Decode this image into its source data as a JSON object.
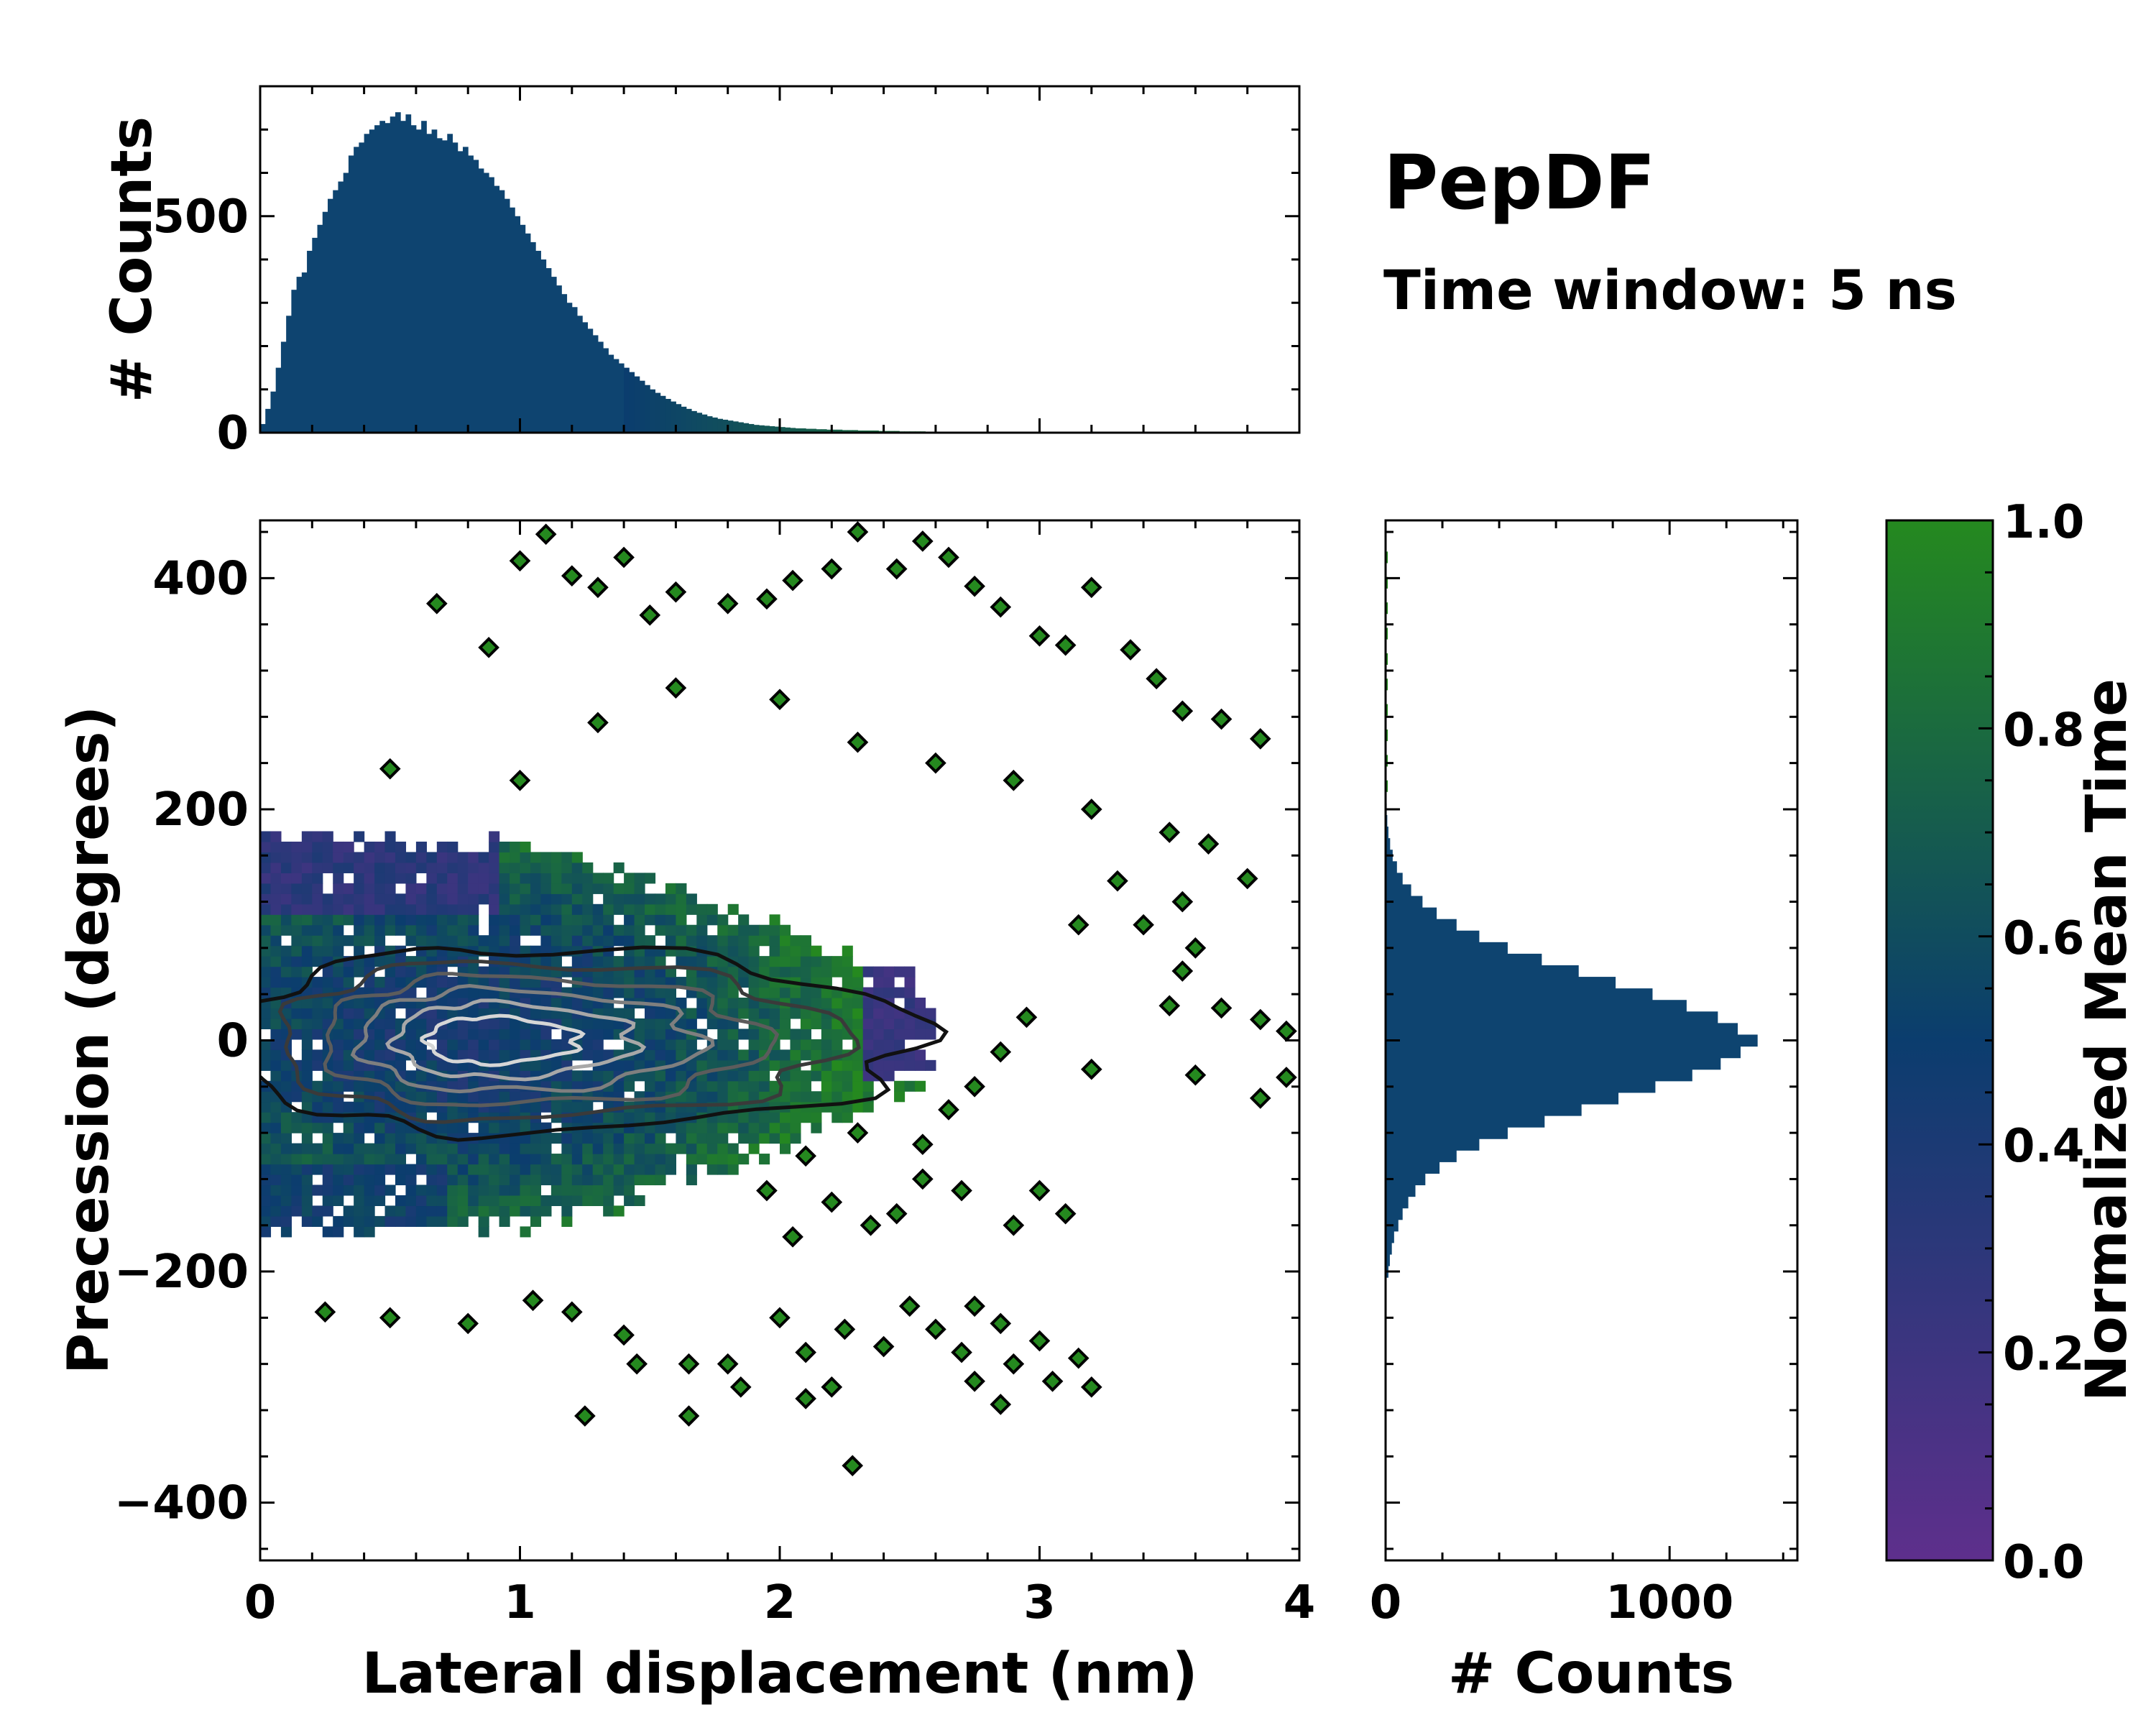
{
  "title": "PepDF",
  "subtitle": "Time window: 5 ns",
  "colors": {
    "hist_fill": "#0e4470",
    "cmap_low": "#5e2f8c",
    "cmap_mid": "#0b3d6e",
    "cmap_high": "#25891f"
  },
  "chart_data": [
    {
      "type": "bar",
      "name": "top-marginal-histogram",
      "ylabel": "# Counts",
      "xlim": [
        0,
        4
      ],
      "ylim": [
        0,
        800
      ],
      "y_ticks": [
        0,
        500
      ],
      "y_tick_labels": [
        "0",
        "500"
      ],
      "x_bin_edges_start": 0.0,
      "bin_width": 0.02,
      "values": [
        20,
        55,
        95,
        150,
        210,
        270,
        330,
        360,
        370,
        420,
        450,
        480,
        510,
        540,
        560,
        580,
        600,
        640,
        660,
        670,
        690,
        700,
        710,
        720,
        715,
        730,
        740,
        720,
        735,
        710,
        700,
        720,
        690,
        700,
        680,
        675,
        690,
        670,
        650,
        660,
        640,
        630,
        610,
        600,
        590,
        570,
        560,
        540,
        520,
        500,
        480,
        460,
        440,
        420,
        400,
        380,
        360,
        340,
        320,
        300,
        290,
        270,
        255,
        240,
        225,
        210,
        195,
        180,
        170,
        160,
        150,
        140,
        130,
        120,
        110,
        100,
        92,
        85,
        78,
        72,
        66,
        60,
        55,
        50,
        46,
        42,
        38,
        35,
        32,
        30,
        28,
        26,
        24,
        22,
        20,
        18,
        17,
        16,
        15,
        14,
        13,
        12,
        11,
        10,
        10,
        9,
        9,
        8,
        8,
        7,
        7,
        7,
        6,
        6,
        6,
        5,
        5,
        5,
        5,
        4,
        4,
        4,
        4,
        3,
        3,
        3,
        3,
        3,
        2,
        2,
        2,
        2,
        2,
        2,
        2,
        1,
        1,
        1,
        1,
        1,
        1,
        1,
        1,
        1,
        1,
        1,
        1,
        1,
        1,
        1,
        1,
        1,
        1,
        1,
        1,
        1,
        1,
        1,
        1,
        1,
        1,
        0,
        0,
        0,
        0,
        0,
        0,
        0,
        0,
        0,
        0,
        0,
        0,
        0,
        0,
        0,
        0,
        0,
        0,
        0,
        0,
        0,
        0,
        0,
        0,
        0,
        0,
        0,
        0,
        0,
        0,
        0,
        0,
        0,
        0,
        0,
        0,
        0,
        0,
        0
      ]
    },
    {
      "type": "heatmap",
      "name": "main-2d-histogram",
      "xlabel": "Lateral displacement (nm)",
      "ylabel": "Precession (degrees)",
      "xlim": [
        0,
        4
      ],
      "ylim": [
        -450,
        450
      ],
      "x_ticks": [
        0,
        1,
        2,
        3,
        4
      ],
      "x_tick_labels": [
        "0",
        "1",
        "2",
        "3",
        "4"
      ],
      "y_ticks": [
        -400,
        -200,
        0,
        200,
        400
      ],
      "y_tick_labels": [
        "−400",
        "−200",
        "0",
        "200",
        "400"
      ],
      "color_value": "Normalized Mean Time",
      "core_region": {
        "x_center": 0.75,
        "y_center": 0,
        "x_sigma": 0.55,
        "y_sigma": 70
      },
      "contour_levels": 6,
      "contour_center": {
        "x": 0.85,
        "y": 0
      },
      "contour_radii": [
        {
          "rx": 1.7,
          "ry": 80
        },
        {
          "rx": 1.4,
          "ry": 68
        },
        {
          "rx": 1.1,
          "ry": 56
        },
        {
          "rx": 0.85,
          "ry": 44
        },
        {
          "rx": 0.6,
          "ry": 32
        },
        {
          "rx": 0.38,
          "ry": 20
        }
      ],
      "scattered_bins": [
        {
          "x": 0.68,
          "y": 378
        },
        {
          "x": 0.88,
          "y": 340
        },
        {
          "x": 1.0,
          "y": 415
        },
        {
          "x": 1.1,
          "y": 438
        },
        {
          "x": 1.2,
          "y": 402
        },
        {
          "x": 1.3,
          "y": 392
        },
        {
          "x": 1.4,
          "y": 418
        },
        {
          "x": 1.5,
          "y": 368
        },
        {
          "x": 1.6,
          "y": 388
        },
        {
          "x": 1.8,
          "y": 378
        },
        {
          "x": 1.95,
          "y": 382
        },
        {
          "x": 2.05,
          "y": 398
        },
        {
          "x": 2.2,
          "y": 408
        },
        {
          "x": 2.3,
          "y": 440
        },
        {
          "x": 2.45,
          "y": 408
        },
        {
          "x": 2.55,
          "y": 432
        },
        {
          "x": 2.65,
          "y": 418
        },
        {
          "x": 2.75,
          "y": 393
        },
        {
          "x": 2.85,
          "y": 375
        },
        {
          "x": 3.0,
          "y": 350
        },
        {
          "x": 3.1,
          "y": 342
        },
        {
          "x": 3.2,
          "y": 392
        },
        {
          "x": 3.35,
          "y": 338
        },
        {
          "x": 3.45,
          "y": 313
        },
        {
          "x": 3.55,
          "y": 285
        },
        {
          "x": 3.7,
          "y": 278
        },
        {
          "x": 3.85,
          "y": 261
        },
        {
          "x": 0.5,
          "y": 235
        },
        {
          "x": 1.0,
          "y": 225
        },
        {
          "x": 1.3,
          "y": 275
        },
        {
          "x": 1.6,
          "y": 305
        },
        {
          "x": 2.0,
          "y": 295
        },
        {
          "x": 2.3,
          "y": 258
        },
        {
          "x": 2.6,
          "y": 240
        },
        {
          "x": 2.9,
          "y": 225
        },
        {
          "x": 3.2,
          "y": 200
        },
        {
          "x": 3.5,
          "y": 180
        },
        {
          "x": 3.65,
          "y": 170
        },
        {
          "x": 3.8,
          "y": 140
        },
        {
          "x": 3.3,
          "y": 138
        },
        {
          "x": 3.55,
          "y": 120
        },
        {
          "x": 3.6,
          "y": 80
        },
        {
          "x": 3.4,
          "y": 100
        },
        {
          "x": 3.15,
          "y": 100
        },
        {
          "x": 3.55,
          "y": 60
        },
        {
          "x": 3.5,
          "y": 30
        },
        {
          "x": 3.7,
          "y": 28
        },
        {
          "x": 3.85,
          "y": 18
        },
        {
          "x": 3.95,
          "y": 8
        },
        {
          "x": 3.95,
          "y": -32
        },
        {
          "x": 3.85,
          "y": -50
        },
        {
          "x": 3.6,
          "y": -30
        },
        {
          "x": 3.2,
          "y": -25
        },
        {
          "x": 2.95,
          "y": 20
        },
        {
          "x": 2.85,
          "y": -10
        },
        {
          "x": 2.75,
          "y": -40
        },
        {
          "x": 2.65,
          "y": -60
        },
        {
          "x": 2.55,
          "y": -90
        },
        {
          "x": 2.3,
          "y": -80
        },
        {
          "x": 2.1,
          "y": -100
        },
        {
          "x": 1.95,
          "y": -130
        },
        {
          "x": 2.2,
          "y": -140
        },
        {
          "x": 2.45,
          "y": -150
        },
        {
          "x": 2.7,
          "y": -130
        },
        {
          "x": 3.0,
          "y": -130
        },
        {
          "x": 3.1,
          "y": -150
        },
        {
          "x": 2.9,
          "y": -160
        },
        {
          "x": 2.55,
          "y": -120
        },
        {
          "x": 2.35,
          "y": -160
        },
        {
          "x": 2.05,
          "y": -170
        },
        {
          "x": 0.25,
          "y": -235
        },
        {
          "x": 0.5,
          "y": -240
        },
        {
          "x": 0.8,
          "y": -245
        },
        {
          "x": 1.05,
          "y": -225
        },
        {
          "x": 1.2,
          "y": -235
        },
        {
          "x": 1.4,
          "y": -255
        },
        {
          "x": 1.45,
          "y": -280
        },
        {
          "x": 1.65,
          "y": -280
        },
        {
          "x": 1.8,
          "y": -280
        },
        {
          "x": 1.85,
          "y": -300
        },
        {
          "x": 2.0,
          "y": -240
        },
        {
          "x": 2.1,
          "y": -270
        },
        {
          "x": 2.25,
          "y": -250
        },
        {
          "x": 2.4,
          "y": -265
        },
        {
          "x": 2.5,
          "y": -230
        },
        {
          "x": 2.6,
          "y": -250
        },
        {
          "x": 2.7,
          "y": -270
        },
        {
          "x": 2.75,
          "y": -230
        },
        {
          "x": 2.85,
          "y": -245
        },
        {
          "x": 2.9,
          "y": -280
        },
        {
          "x": 3.0,
          "y": -260
        },
        {
          "x": 3.05,
          "y": -295
        },
        {
          "x": 3.15,
          "y": -275
        },
        {
          "x": 3.2,
          "y": -300
        },
        {
          "x": 2.85,
          "y": -315
        },
        {
          "x": 2.75,
          "y": -295
        },
        {
          "x": 2.2,
          "y": -300
        },
        {
          "x": 2.1,
          "y": -310
        },
        {
          "x": 1.65,
          "y": -325
        },
        {
          "x": 1.25,
          "y": -325
        },
        {
          "x": 2.28,
          "y": -368
        }
      ]
    },
    {
      "type": "bar",
      "name": "right-marginal-histogram",
      "xlabel": "# Counts",
      "xlim": [
        0,
        1450
      ],
      "x_ticks": [
        0,
        1000
      ],
      "x_tick_labels": [
        "0",
        "1000"
      ],
      "ylim": [
        -450,
        450
      ],
      "bin_centers": [
        -200,
        -190,
        -180,
        -170,
        -160,
        -150,
        -140,
        -130,
        -120,
        -110,
        -100,
        -90,
        -80,
        -70,
        -60,
        -50,
        -40,
        -30,
        -20,
        -10,
        0,
        10,
        20,
        30,
        40,
        50,
        60,
        70,
        80,
        90,
        100,
        110,
        120,
        130,
        140,
        150,
        160,
        170,
        180,
        190,
        200
      ],
      "values": [
        10,
        15,
        22,
        30,
        45,
        60,
        80,
        105,
        140,
        190,
        250,
        330,
        430,
        560,
        690,
        820,
        950,
        1080,
        1180,
        1250,
        1310,
        1240,
        1170,
        1060,
        940,
        810,
        680,
        550,
        430,
        330,
        250,
        180,
        130,
        90,
        60,
        40,
        25,
        16,
        10,
        6,
        4
      ],
      "sparse_tail_values": [
        3,
        3,
        2,
        2,
        2,
        1,
        1,
        1,
        1,
        1
      ]
    },
    {
      "type": "colorbar",
      "name": "colorbar",
      "label": "Normalized Mean Time",
      "ylim": [
        0.0,
        1.0
      ],
      "ticks": [
        0.0,
        0.2,
        0.4,
        0.6,
        0.8,
        1.0
      ],
      "tick_labels": [
        "0.0",
        "0.2",
        "0.4",
        "0.6",
        "0.8",
        "1.0"
      ]
    }
  ]
}
